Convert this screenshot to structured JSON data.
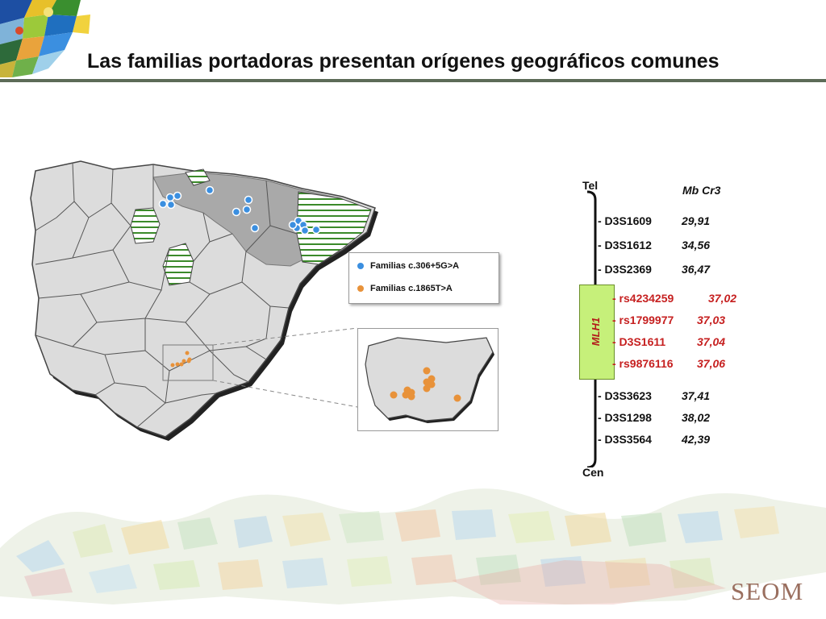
{
  "slide": {
    "title": "Las familias portadoras presentan orígenes geográficos comunes",
    "logo_text": "SEOM",
    "colors": {
      "blue_family": "#3b8fe0",
      "orange_family": "#e8923a",
      "red_marker": "#c62020",
      "mlh1_box": "#c6f07a"
    }
  },
  "map": {
    "legend": [
      {
        "label": "Familias c.306+5G>A",
        "color": "#3b8fe0"
      },
      {
        "label": "Familias c.1865T>A",
        "color": "#e8923a"
      }
    ]
  },
  "chromosome": {
    "top_label": "Tel",
    "bottom_label": "Cen",
    "mb_header": "Mb Cr3",
    "gene": "MLH1",
    "markers": [
      {
        "name": "- D3S1609",
        "mb": "29,91",
        "highlight": false
      },
      {
        "name": "- D3S1612",
        "mb": "34,56",
        "highlight": false
      },
      {
        "name": "- D3S2369",
        "mb": "36,47",
        "highlight": false
      },
      {
        "name": "- rs4234259",
        "mb": "37,02",
        "highlight": true
      },
      {
        "name": "- rs1799977",
        "mb": "37,03",
        "highlight": true
      },
      {
        "name": "- D3S1611",
        "mb": "37,04",
        "highlight": true
      },
      {
        "name": "- rs9876116",
        "mb": "37,06",
        "highlight": true
      },
      {
        "name": "- D3S3623",
        "mb": "37,41",
        "highlight": false
      },
      {
        "name": "- D3S1298",
        "mb": "38,02",
        "highlight": false
      },
      {
        "name": "- D3S3564",
        "mb": "42,39",
        "highlight": false
      }
    ]
  }
}
